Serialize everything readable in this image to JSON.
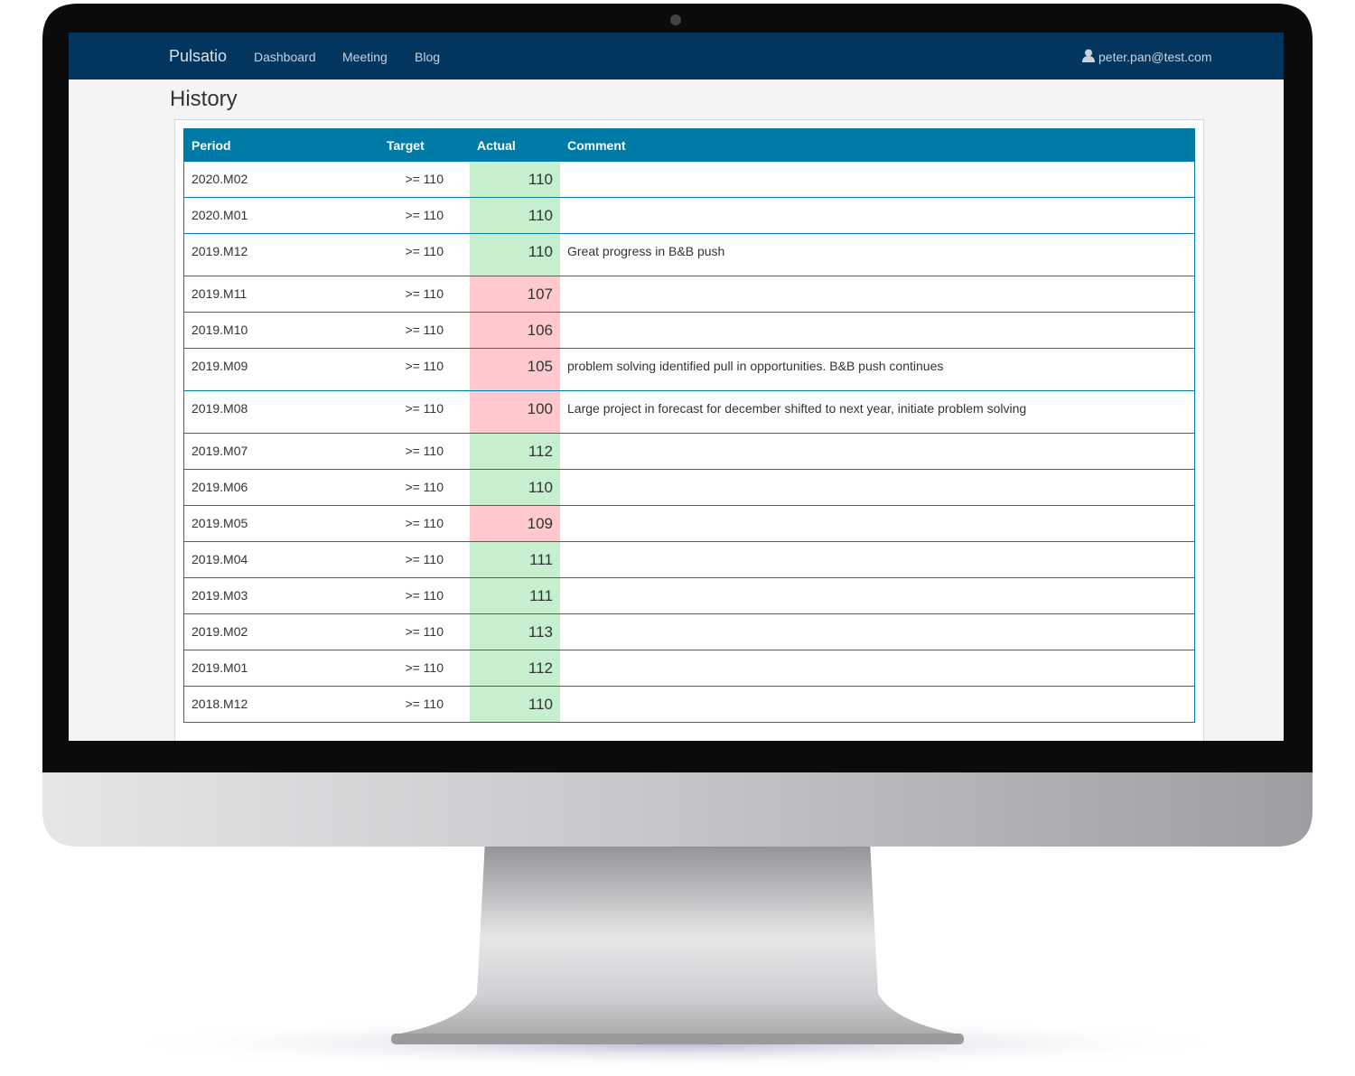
{
  "nav": {
    "brand": "Pulsatio",
    "links": [
      "Dashboard",
      "Meeting",
      "Blog"
    ],
    "user": "peter.pan@test.com"
  },
  "page_title": "History",
  "table": {
    "headers": [
      "Period",
      "Target",
      "Actual",
      "Comment"
    ],
    "met_color": "#c6efce",
    "missed_color": "#ffc9ce",
    "rows": [
      {
        "period": "2020.M02",
        "target": ">= 110",
        "actual": 110
      },
      {
        "period": "2020.M01",
        "target": ">= 110",
        "actual": 110
      },
      {
        "period": "2019.M12",
        "target": ">= 110",
        "actual": 110,
        "comment": "Great progress in B&B push"
      },
      {
        "period": "2019.M11",
        "target": ">= 110",
        "actual": 107
      },
      {
        "period": "2019.M10",
        "target": ">= 110",
        "actual": 106
      },
      {
        "period": "2019.M09",
        "target": ">= 110",
        "actual": 105,
        "comment": "problem solving identified pull in opportunities. B&B push continues"
      },
      {
        "period": "2019.M08",
        "target": ">= 110",
        "actual": 100,
        "comment": "Large project in forecast for december shifted to next year, initiate problem solving"
      },
      {
        "period": "2019.M07",
        "target": ">= 110",
        "actual": 112
      },
      {
        "period": "2019.M06",
        "target": ">= 110",
        "actual": 110
      },
      {
        "period": "2019.M05",
        "target": ">= 110",
        "actual": 109
      },
      {
        "period": "2019.M04",
        "target": ">= 110",
        "actual": 111
      },
      {
        "period": "2019.M03",
        "target": ">= 110",
        "actual": 111
      },
      {
        "period": "2019.M02",
        "target": ">= 110",
        "actual": 113
      },
      {
        "period": "2019.M01",
        "target": ">= 110",
        "actual": 112
      },
      {
        "period": "2018.M12",
        "target": ">= 110",
        "actual": 110
      }
    ]
  }
}
